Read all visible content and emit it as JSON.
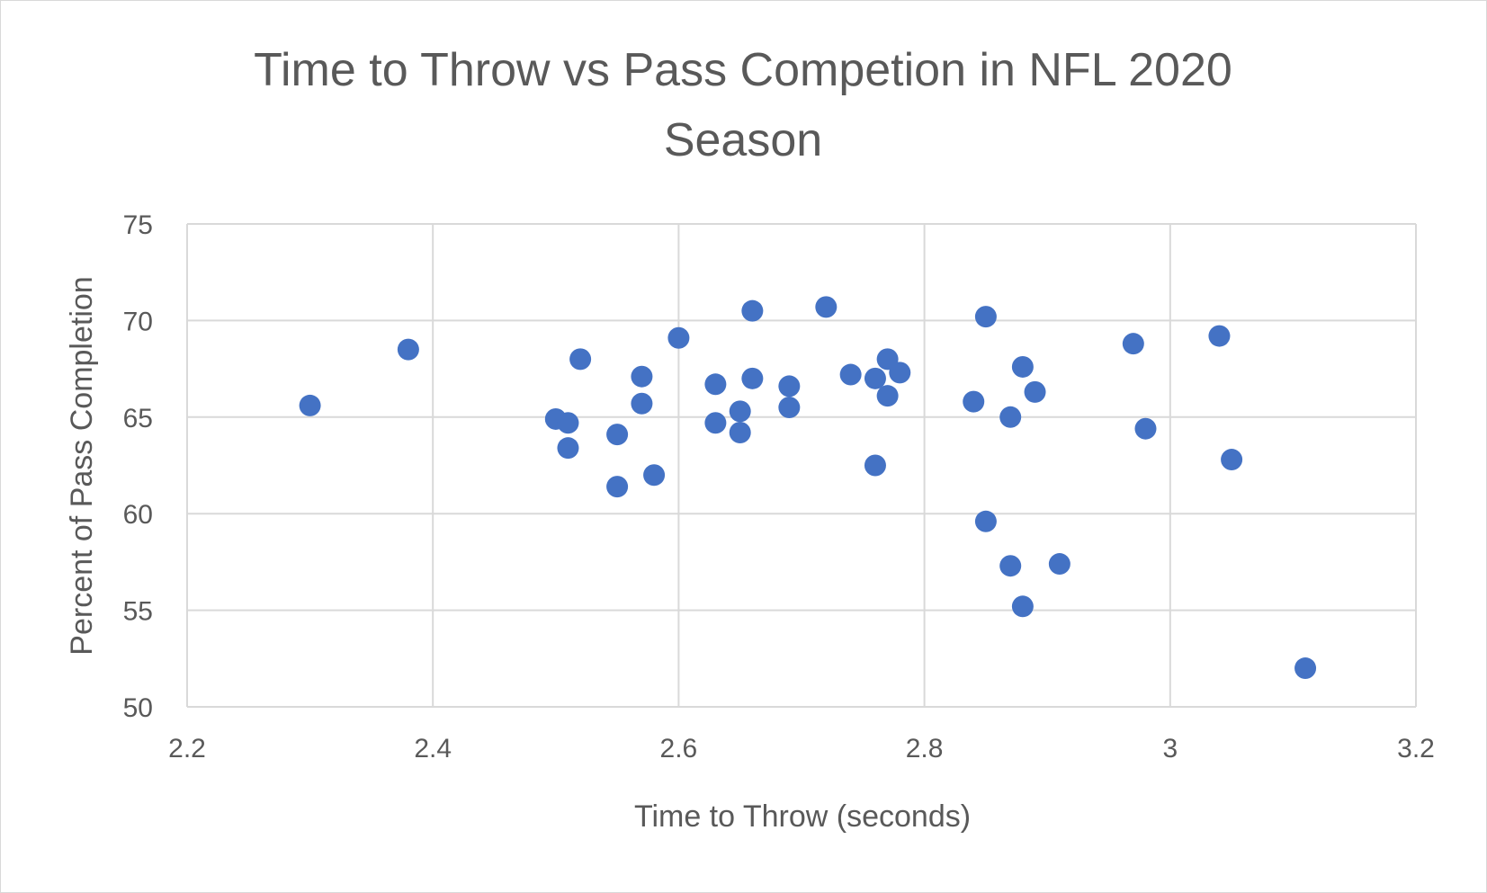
{
  "chart_data": {
    "type": "scatter",
    "title": [
      "Time to Throw vs Pass Competion in NFL 2020",
      "Season"
    ],
    "xlabel": "Time to Throw (seconds)",
    "ylabel": "Percent of Pass Completion",
    "xlim": [
      2.2,
      3.2
    ],
    "ylim": [
      50,
      75
    ],
    "xticks": [
      "2.2",
      "2.4",
      "2.6",
      "2.8",
      "3",
      "3.2"
    ],
    "yticks": [
      "50",
      "55",
      "60",
      "65",
      "70",
      "75"
    ],
    "grid": true,
    "marker_color": "#4472C4",
    "series": [
      {
        "points": [
          [
            2.3,
            65.6
          ],
          [
            2.38,
            68.5
          ],
          [
            2.5,
            64.9
          ],
          [
            2.51,
            64.7
          ],
          [
            2.51,
            63.4
          ],
          [
            2.52,
            68.0
          ],
          [
            2.55,
            64.1
          ],
          [
            2.55,
            61.4
          ],
          [
            2.57,
            67.1
          ],
          [
            2.57,
            65.7
          ],
          [
            2.58,
            62.0
          ],
          [
            2.6,
            69.1
          ],
          [
            2.63,
            66.7
          ],
          [
            2.63,
            64.7
          ],
          [
            2.65,
            65.3
          ],
          [
            2.65,
            64.2
          ],
          [
            2.66,
            70.5
          ],
          [
            2.66,
            67.0
          ],
          [
            2.69,
            66.6
          ],
          [
            2.69,
            65.5
          ],
          [
            2.72,
            70.7
          ],
          [
            2.74,
            67.2
          ],
          [
            2.76,
            67.0
          ],
          [
            2.76,
            62.5
          ],
          [
            2.77,
            68.0
          ],
          [
            2.77,
            66.1
          ],
          [
            2.78,
            67.3
          ],
          [
            2.84,
            65.8
          ],
          [
            2.85,
            70.2
          ],
          [
            2.85,
            59.6
          ],
          [
            2.87,
            65.0
          ],
          [
            2.87,
            57.3
          ],
          [
            2.88,
            67.6
          ],
          [
            2.88,
            55.2
          ],
          [
            2.89,
            66.3
          ],
          [
            2.91,
            57.4
          ],
          [
            2.97,
            68.8
          ],
          [
            2.98,
            64.4
          ],
          [
            3.04,
            69.2
          ],
          [
            3.05,
            62.8
          ],
          [
            3.11,
            52.0
          ]
        ]
      }
    ]
  }
}
